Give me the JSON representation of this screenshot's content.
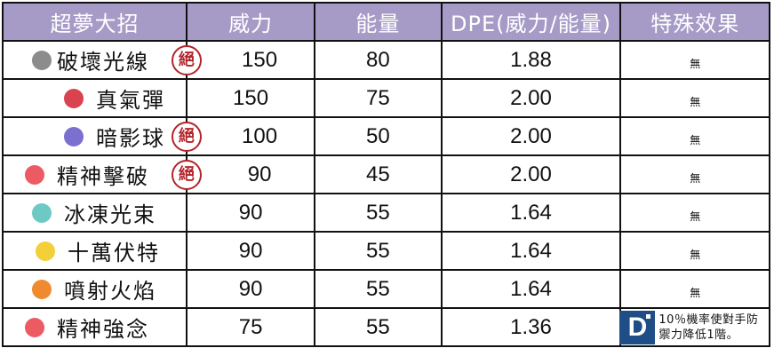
{
  "table": {
    "headers": [
      "超夢大招",
      "威力",
      "能量",
      "DPE(威力/能量)",
      "特殊效果"
    ],
    "header_bg": "#a69bc6",
    "elite_badge_label": "絕",
    "elite_color": "#b3242a",
    "rows": [
      {
        "name": "破壞光線",
        "icon": "normal-type-icon",
        "icon_color": "#8c8c8c",
        "elite": true,
        "power": "150",
        "energy": "80",
        "dpe": "1.88",
        "effect": "無"
      },
      {
        "name": "真氣彈",
        "icon": "fighting-type-icon",
        "icon_color": "#d8434f",
        "elite": false,
        "power": "150",
        "energy": "75",
        "dpe": "2.00",
        "effect": "無"
      },
      {
        "name": "暗影球",
        "icon": "ghost-type-icon",
        "icon_color": "#7b6fcf",
        "elite": true,
        "power": "100",
        "energy": "50",
        "dpe": "2.00",
        "effect": "無"
      },
      {
        "name": "精神擊破",
        "icon": "psychic-type-icon",
        "icon_color": "#ec5b64",
        "elite": true,
        "power": "90",
        "energy": "45",
        "dpe": "2.00",
        "effect": "無"
      },
      {
        "name": "冰凍光束",
        "icon": "ice-type-icon",
        "icon_color": "#6cc9c4",
        "elite": false,
        "power": "90",
        "energy": "55",
        "dpe": "1.64",
        "effect": "無"
      },
      {
        "name": "十萬伏特",
        "icon": "electric-type-icon",
        "icon_color": "#f3cf3a",
        "elite": false,
        "power": "90",
        "energy": "55",
        "dpe": "1.64",
        "effect": "無"
      },
      {
        "name": "噴射火焰",
        "icon": "fire-type-icon",
        "icon_color": "#f08a2f",
        "elite": false,
        "power": "90",
        "energy": "55",
        "dpe": "1.64",
        "effect": "無"
      },
      {
        "name": "精神強念",
        "icon": "psychic-type-icon",
        "icon_color": "#ec5b64",
        "elite": false,
        "power": "75",
        "energy": "55",
        "dpe": "1.36",
        "effect": "10％機率使對手防禦力降低1階。",
        "effect_logo": "D"
      }
    ]
  }
}
